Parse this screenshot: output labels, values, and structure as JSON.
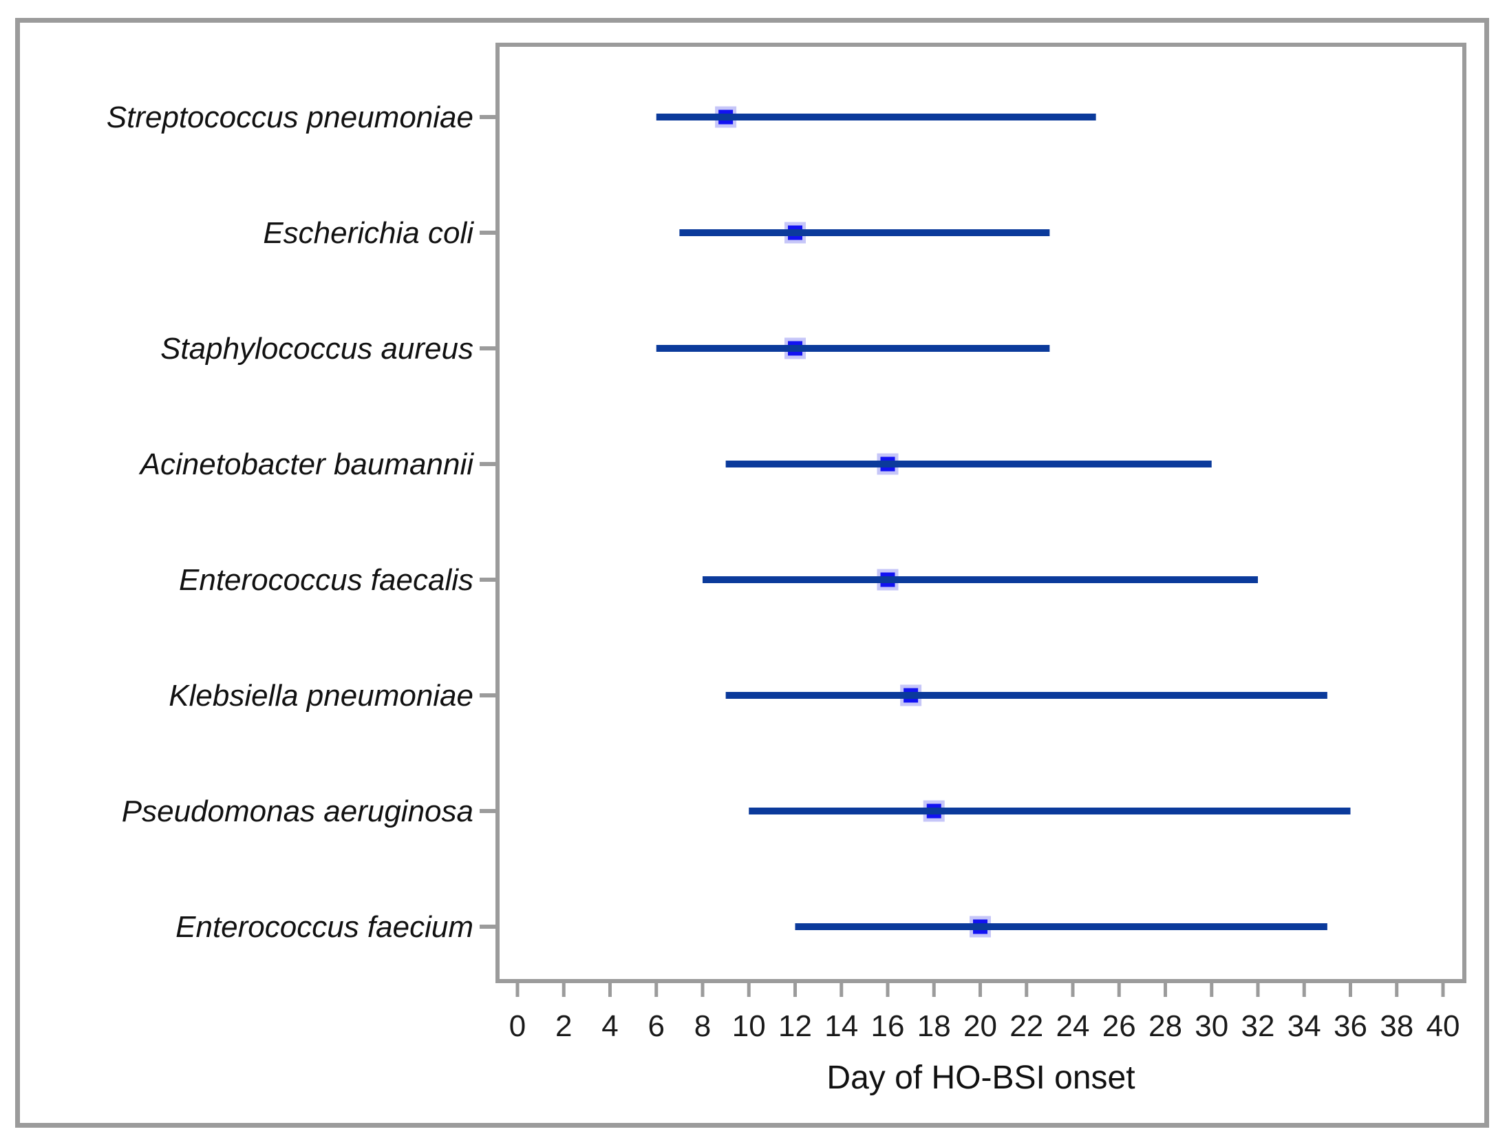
{
  "chart_data": {
    "type": "scatter",
    "subtype": "horizontal-range-dot-plot",
    "title": "",
    "xlabel": "Day of HO-BSI onset",
    "ylabel": "",
    "xlim": [
      0,
      40
    ],
    "xticks": [
      0,
      2,
      4,
      6,
      8,
      10,
      12,
      14,
      16,
      18,
      20,
      22,
      24,
      26,
      28,
      30,
      32,
      34,
      36,
      38,
      40
    ],
    "grid": false,
    "legend": false,
    "marker_shape": "square",
    "rows": [
      {
        "organism": "Streptococcus pneumoniae",
        "range_start": 6,
        "marker": 9,
        "range_end": 25
      },
      {
        "organism": "Escherichia coli",
        "range_start": 7,
        "marker": 12,
        "range_end": 23
      },
      {
        "organism": "Staphylococcus aureus",
        "range_start": 6,
        "marker": 12,
        "range_end": 23
      },
      {
        "organism": "Acinetobacter baumannii",
        "range_start": 9,
        "marker": 16,
        "range_end": 30
      },
      {
        "organism": "Enterococcus faecalis",
        "range_start": 8,
        "marker": 16,
        "range_end": 32
      },
      {
        "organism": "Klebsiella pneumoniae",
        "range_start": 9,
        "marker": 17,
        "range_end": 35
      },
      {
        "organism": "Pseudomonas aeruginosa",
        "range_start": 10,
        "marker": 18,
        "range_end": 36
      },
      {
        "organism": "Enterococcus faecium",
        "range_start": 12,
        "marker": 20,
        "range_end": 35
      }
    ],
    "colors": {
      "range_line": "#0b3a9b",
      "marker_fill": "#1212f2",
      "marker_halo": "#c6c6f8",
      "axis": "#9b9b9b",
      "text": "#1a1a1a"
    }
  }
}
